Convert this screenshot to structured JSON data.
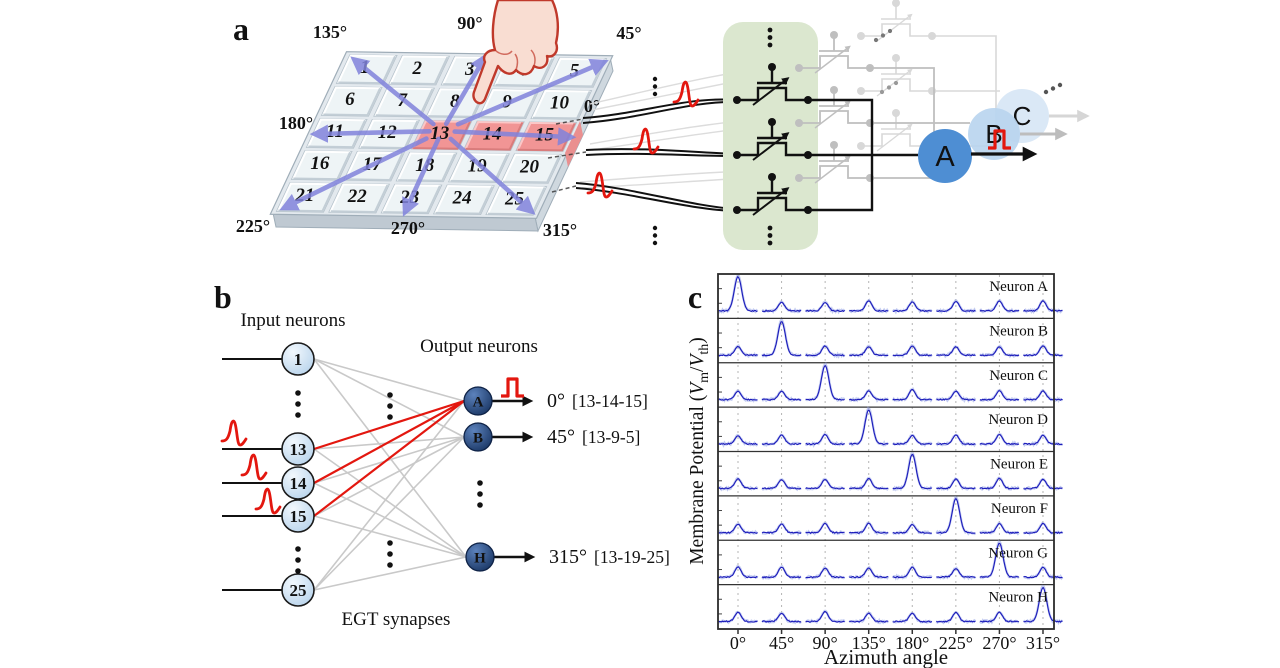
{
  "figure": {
    "background": "#ffffff",
    "panel_a": {
      "label": "a",
      "azimuth_labels": [
        "135°",
        "90°",
        "45°",
        "180°",
        "0°",
        "225°",
        "270°",
        "315°"
      ],
      "grid_numbers": [
        1,
        2,
        3,
        4,
        5,
        6,
        7,
        8,
        9,
        10,
        11,
        12,
        13,
        14,
        15,
        16,
        17,
        18,
        19,
        20,
        21,
        22,
        23,
        24,
        25
      ],
      "highlighted_tiles": [
        13,
        14,
        15
      ],
      "neuron_labels": [
        "A",
        "B",
        "C"
      ]
    },
    "panel_b": {
      "label": "b",
      "input_title": "Input neurons",
      "output_title": "Output neurons",
      "synapse_label": "EGT synapses",
      "input_neurons": [
        {
          "label": "1",
          "spike": false
        },
        {
          "label": "13",
          "spike": true
        },
        {
          "label": "14",
          "spike": true
        },
        {
          "label": "15",
          "spike": true
        },
        {
          "label": "25",
          "spike": false
        }
      ],
      "output_neurons": [
        {
          "label": "A",
          "angle": "0°",
          "tiles": "[13-14-15]",
          "highlight": true
        },
        {
          "label": "B",
          "angle": "45°",
          "tiles": "[13-9-5]",
          "highlight": false
        },
        {
          "label": "H",
          "angle": "315°",
          "tiles": "[13-19-25]",
          "highlight": false
        }
      ]
    },
    "panel_c": {
      "label": "c"
    },
    "colors": {
      "accent_red": "#e3170f",
      "neuron_blue": "#4e8ed3",
      "neuron_blue_faded": "#b8d4ee",
      "neuron_blue_faint": "#d3e4f5",
      "output_neuron_dark": "#1d3c72",
      "input_neuron_light": "#cfe2f5",
      "synapse_box_green": "#dbe7cf",
      "trace_blue": "#1d1dbb",
      "grid_arrow_purple": "#8183dc",
      "highlight_pink": "#f19595"
    }
  },
  "chart_data": {
    "type": "line",
    "title": "",
    "xlabel": "Azimuth angle",
    "ylabel": "Membrane Potential (Vm/Vth)",
    "ylabel_parts": {
      "prefix": "Membrane Potential (",
      "v1": "V",
      "sub1": "m",
      "slash": "/",
      "v2": "V",
      "sub2": "th",
      "suffix": ")"
    },
    "x_tick_labels": [
      "0°",
      "45°",
      "90°",
      "135°",
      "180°",
      "225°",
      "270°",
      "315°"
    ],
    "grid": "vertical dashed gridline at each azimuth",
    "legend": "none",
    "ylim_per_panel": [
      0,
      1.15
    ],
    "panels": [
      {
        "name": "Neuron A",
        "preferred_angle": "0°",
        "values": [
          1.0,
          0.25,
          0.25,
          0.25,
          0.25,
          0.25,
          0.25,
          0.25
        ]
      },
      {
        "name": "Neuron B",
        "preferred_angle": "45°",
        "values": [
          0.25,
          1.0,
          0.25,
          0.25,
          0.25,
          0.25,
          0.25,
          0.25
        ]
      },
      {
        "name": "Neuron C",
        "preferred_angle": "90°",
        "values": [
          0.25,
          0.25,
          1.0,
          0.25,
          0.25,
          0.25,
          0.25,
          0.25
        ]
      },
      {
        "name": "Neuron D",
        "preferred_angle": "135°",
        "values": [
          0.25,
          0.25,
          0.25,
          1.0,
          0.25,
          0.25,
          0.25,
          0.25
        ]
      },
      {
        "name": "Neuron E",
        "preferred_angle": "180°",
        "values": [
          0.25,
          0.25,
          0.25,
          0.25,
          1.0,
          0.25,
          0.25,
          0.25
        ]
      },
      {
        "name": "Neuron F",
        "preferred_angle": "225°",
        "values": [
          0.25,
          0.25,
          0.25,
          0.25,
          0.25,
          1.0,
          0.25,
          0.25
        ]
      },
      {
        "name": "Neuron G",
        "preferred_angle": "270°",
        "values": [
          0.25,
          0.25,
          0.25,
          0.25,
          0.25,
          0.25,
          1.0,
          0.25
        ]
      },
      {
        "name": "Neuron H",
        "preferred_angle": "315°",
        "values": [
          0.25,
          0.25,
          0.25,
          0.25,
          0.25,
          0.25,
          0.25,
          1.0
        ]
      }
    ]
  }
}
